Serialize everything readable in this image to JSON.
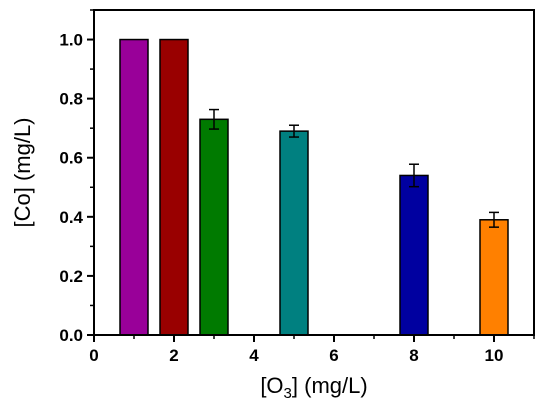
{
  "chart_data": {
    "type": "bar",
    "title": "",
    "xlabel": {
      "main": "[O",
      "sub": "3",
      "rest": "] (mg/L)"
    },
    "ylabel": "[Co] (mg/L)",
    "xlim": [
      0,
      11
    ],
    "ylim": [
      0,
      1.1
    ],
    "xticks": [
      0,
      2,
      4,
      6,
      8,
      10
    ],
    "xtick_labels": [
      "0",
      "2",
      "4",
      "6",
      "8",
      "10"
    ],
    "yticks": [
      0.0,
      0.2,
      0.4,
      0.6,
      0.8,
      1.0
    ],
    "ytick_labels": [
      "0.0",
      "0.2",
      "0.4",
      "0.6",
      "0.8",
      "1.0"
    ],
    "bar_width": 0.7,
    "grid": false,
    "legend": "none",
    "bars": [
      {
        "x": 1,
        "value": 1.0,
        "error": 0.0,
        "color": "#990099"
      },
      {
        "x": 2,
        "value": 1.0,
        "error": 0.0,
        "color": "#990000"
      },
      {
        "x": 3,
        "value": 0.73,
        "error": 0.033,
        "color": "#007a00"
      },
      {
        "x": 5,
        "value": 0.69,
        "error": 0.02,
        "color": "#008080"
      },
      {
        "x": 8,
        "value": 0.54,
        "error": 0.038,
        "color": "#0000a0"
      },
      {
        "x": 10,
        "value": 0.39,
        "error": 0.025,
        "color": "#ff8000"
      }
    ]
  }
}
